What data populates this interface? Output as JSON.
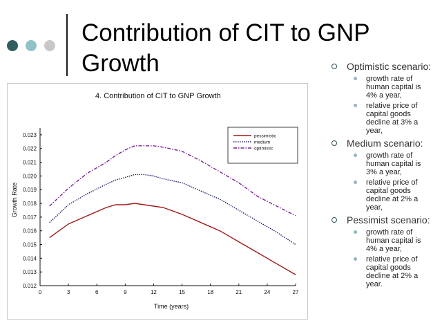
{
  "slide": {
    "title": "Contribution of CIT to GNP Growth",
    "decor_dot_colors": [
      "#2f5d62",
      "#8fc3c8",
      "#c8c8c8"
    ]
  },
  "chart_data": {
    "type": "line",
    "title": "4.   Contribution of CIT to GNP Growth",
    "xlabel": "Time (years)",
    "ylabel": "Growth Rate",
    "xlim": [
      0,
      27
    ],
    "ylim": [
      0.012,
      0.0235
    ],
    "x_ticks": [
      0,
      3,
      6,
      9,
      12,
      15,
      18,
      21,
      24,
      27
    ],
    "y_ticks": [
      "0.012",
      "0.013",
      "0.014",
      "0.015",
      "0.016",
      "0.017",
      "0.018",
      "0.019",
      "0.020",
      "0.021",
      "0.022",
      "0.023"
    ],
    "legend_position": "top-right",
    "grid": false,
    "x": [
      1,
      3,
      5,
      7,
      8,
      9,
      10,
      11,
      12,
      13,
      15,
      17,
      19,
      21,
      23,
      25,
      27
    ],
    "series": [
      {
        "name": "pessimistic",
        "color": "#a01818",
        "dash": "solid",
        "values": [
          0.0155,
          0.0165,
          0.0171,
          0.0177,
          0.0179,
          0.0179,
          0.018,
          0.0179,
          0.0178,
          0.0177,
          0.0172,
          0.0166,
          0.016,
          0.0152,
          0.0144,
          0.0136,
          0.0128
        ]
      },
      {
        "name": "medium",
        "color": "#1a1a6e",
        "dash": "dotted",
        "values": [
          0.0166,
          0.0179,
          0.0187,
          0.0194,
          0.0197,
          0.0199,
          0.0201,
          0.0201,
          0.02,
          0.0198,
          0.0195,
          0.0189,
          0.0183,
          0.0175,
          0.0167,
          0.0159,
          0.015
        ]
      },
      {
        "name": "optimistic",
        "color": "#7a1f9a",
        "dash": "dashdot",
        "values": [
          0.0178,
          0.0191,
          0.0202,
          0.021,
          0.0215,
          0.0219,
          0.0222,
          0.0222,
          0.0222,
          0.0221,
          0.0218,
          0.0211,
          0.0203,
          0.0195,
          0.0185,
          0.0178,
          0.0171
        ]
      }
    ]
  },
  "scenarios": [
    {
      "label": "Optimistic scenario:",
      "points": [
        "growth rate of human capital is 4% a year,",
        "relative price of capital goods decline at 3% a year,"
      ]
    },
    {
      "label": "Medium scenario:",
      "points": [
        "growth rate of human capital is 3% a year,",
        "relative price of capital goods decline at 2% a year,"
      ]
    },
    {
      "label": "Pessimist scenario:",
      "points": [
        "growth rate of human capital is 4% a year,",
        "relative price of capital goods decline at 2% a year."
      ]
    }
  ]
}
